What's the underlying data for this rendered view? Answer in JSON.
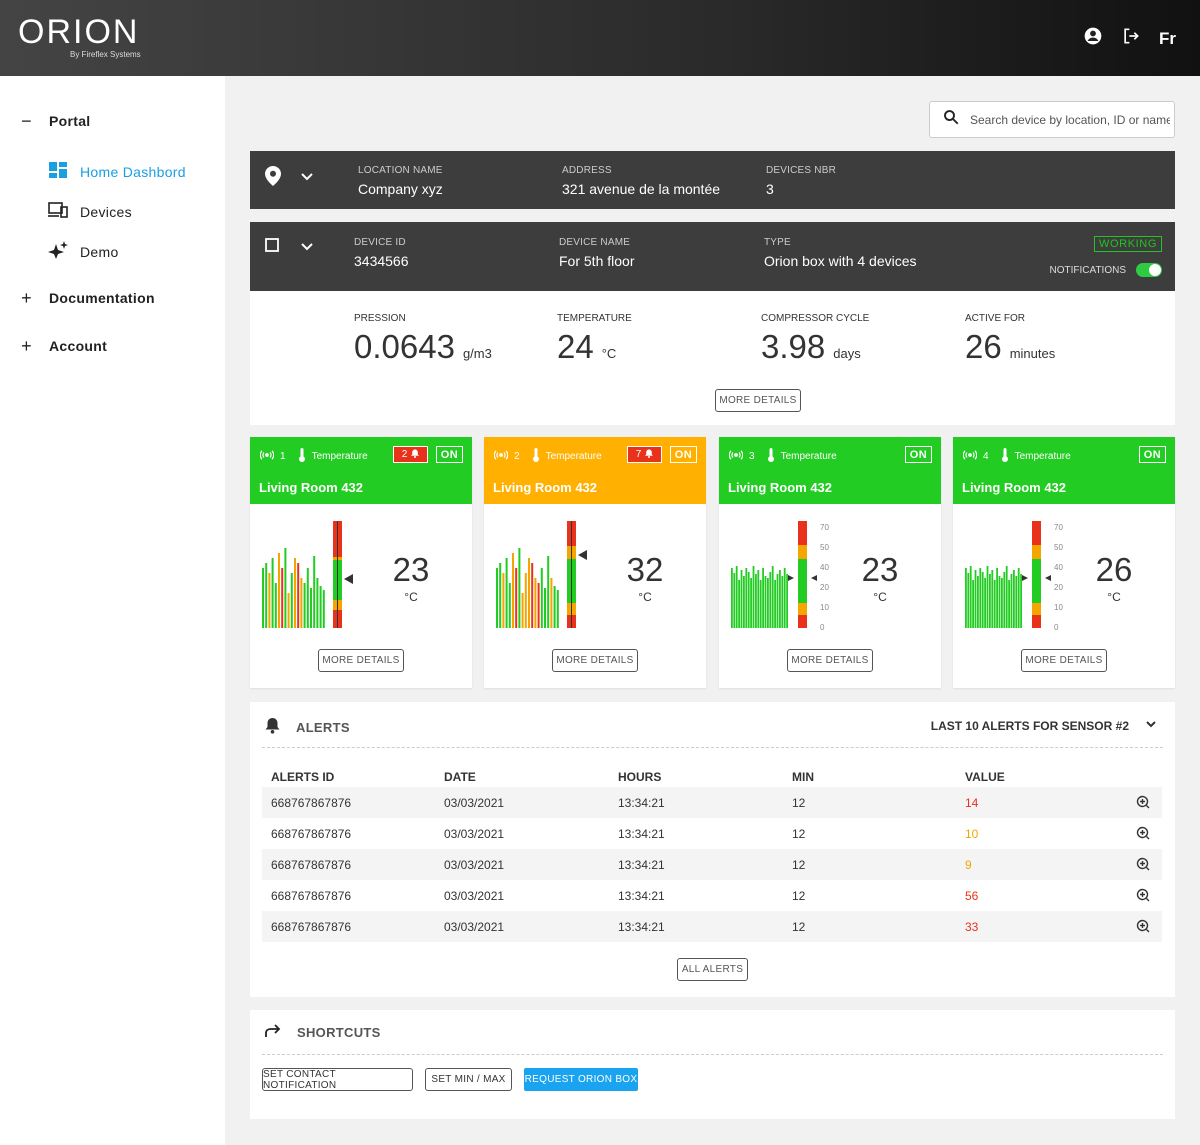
{
  "header": {
    "logo": "ORION",
    "logo_sub": "By Fireflex Systems",
    "lang": "Fr",
    "account_icon": "account-circle-icon",
    "logout_icon": "logout-icon"
  },
  "sidebar": {
    "portal": "Portal",
    "items": [
      {
        "label": "Home Dashbord",
        "icon": "dashboard-icon",
        "active": true
      },
      {
        "label": "Devices",
        "icon": "devices-icon",
        "active": false
      },
      {
        "label": "Demo",
        "icon": "sparkle-icon",
        "active": false
      }
    ],
    "documentation": "Documentation",
    "account": "Account"
  },
  "search": {
    "placeholder": "Search device by location, ID or name"
  },
  "location": {
    "name_label": "LOCATION NAME",
    "name": "Company xyz",
    "address_label": "ADDRESS",
    "address": "321 avenue de la montée",
    "devices_label": "DEVICES NBR",
    "devices": "3"
  },
  "device": {
    "id_label": "DEVICE ID",
    "id": "3434566",
    "name_label": "DEVICE NAME",
    "name": "For 5th floor",
    "type_label": "TYPE",
    "type": "Orion box with 4 devices",
    "status": "WORKING",
    "notifications_label": "NOTIFICATIONS",
    "notifications_on": true
  },
  "stats": [
    {
      "label": "PRESSION",
      "value": "0.0643",
      "unit": "g/m3"
    },
    {
      "label": "TEMPERATURE",
      "value": "24",
      "unit": "°C"
    },
    {
      "label": "COMPRESSOR CYCLE",
      "value": "3.98",
      "unit": "days"
    },
    {
      "label": "ACTIVE FOR",
      "value": "26",
      "unit": "minutes"
    }
  ],
  "more_details": "MORE DETAILS",
  "sensors": [
    {
      "num": "1",
      "type": "Temperature",
      "alerts": "2",
      "state": "ON",
      "title": "Living Room 432",
      "value": "23",
      "unit": "°C",
      "color": "#22cc22"
    },
    {
      "num": "2",
      "type": "Temperature",
      "alerts": "7",
      "state": "ON",
      "title": "Living Room 432",
      "value": "32",
      "unit": "°C",
      "color": "#ffb000"
    },
    {
      "num": "3",
      "type": "Temperature",
      "alerts": "",
      "state": "ON",
      "title": "Living Room 432",
      "value": "23",
      "unit": "°C",
      "color": "#22cc22"
    },
    {
      "num": "4",
      "type": "Temperature",
      "alerts": "",
      "state": "ON",
      "title": "Living Room 432",
      "value": "26",
      "unit": "°C",
      "color": "#22cc22"
    }
  ],
  "scale_ticks": [
    "70",
    "50",
    "40",
    "20",
    "10",
    "0"
  ],
  "alerts": {
    "title": "ALERTS",
    "filter": "LAST 10 ALERTS FOR SENSOR #2",
    "columns": [
      "ALERTS ID",
      "DATE",
      "HOURS",
      "MIN",
      "VALUE"
    ],
    "rows": [
      {
        "id": "668767867876",
        "date": "03/03/2021",
        "hours": "13:34:21",
        "min": "12",
        "value": "14",
        "color": "#e8321b"
      },
      {
        "id": "668767867876",
        "date": "03/03/2021",
        "hours": "13:34:21",
        "min": "12",
        "value": "10",
        "color": "#f5a500"
      },
      {
        "id": "668767867876",
        "date": "03/03/2021",
        "hours": "13:34:21",
        "min": "12",
        "value": "9",
        "color": "#f5a500"
      },
      {
        "id": "668767867876",
        "date": "03/03/2021",
        "hours": "13:34:21",
        "min": "12",
        "value": "56",
        "color": "#e8321b"
      },
      {
        "id": "668767867876",
        "date": "03/03/2021",
        "hours": "13:34:21",
        "min": "12",
        "value": "33",
        "color": "#e8321b"
      }
    ],
    "all_alerts": "ALL ALERTS"
  },
  "shortcuts": {
    "title": "SHORTCUTS",
    "buttons": [
      "SET CONTACT NOTIFICATION",
      "SET MIN / MAX",
      "REQUEST ORION BOX"
    ]
  }
}
